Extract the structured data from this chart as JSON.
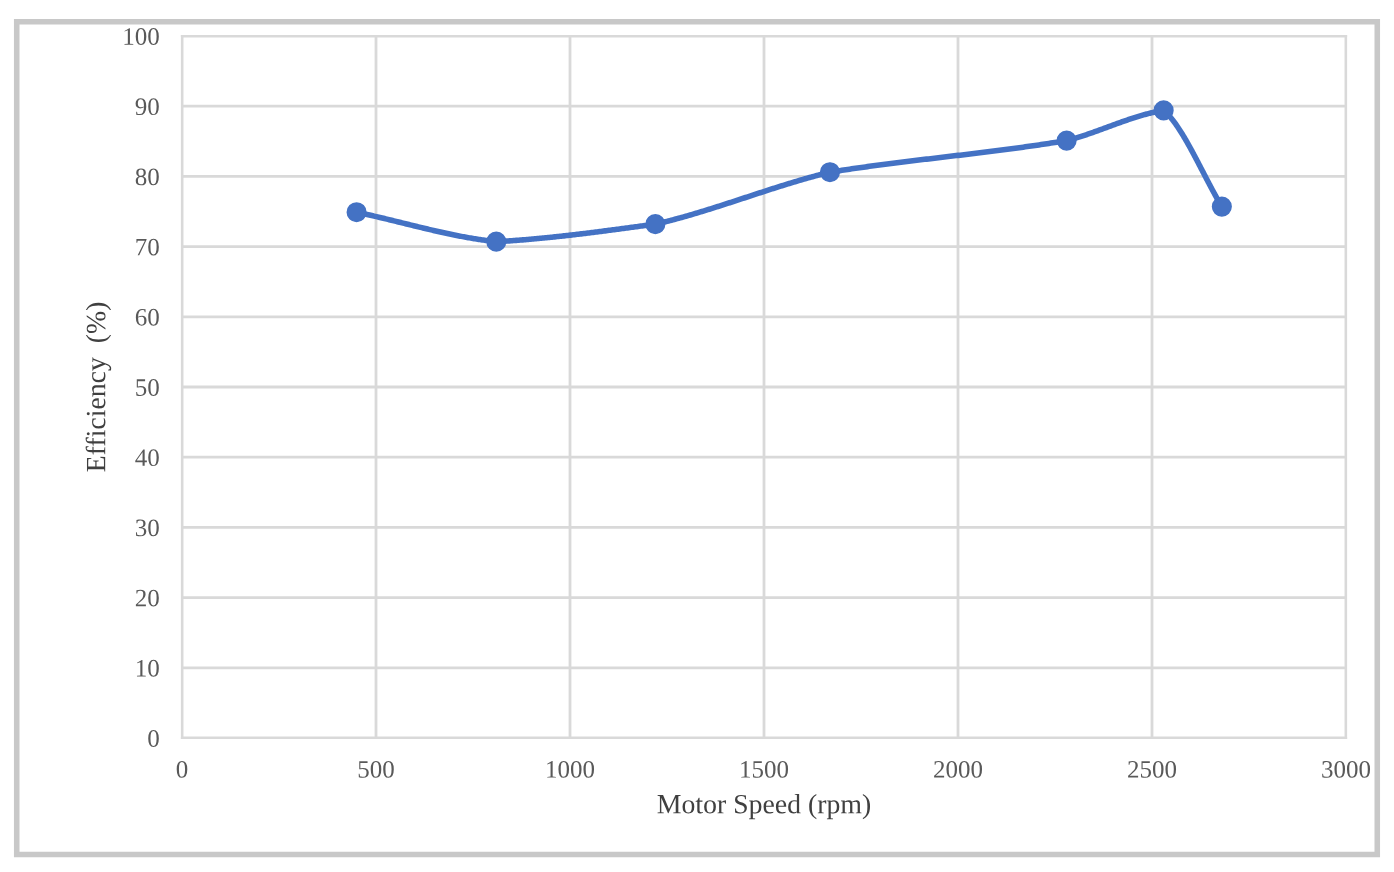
{
  "chart_data": {
    "type": "line",
    "xlabel": "Motor Speed (rpm)",
    "ylabel": "Efficiency  (%)",
    "x": [
      450,
      810,
      1220,
      1670,
      2280,
      2530,
      2680
    ],
    "series": [
      {
        "color": "#4472c4",
        "values": [
          74.9,
          70.7,
          73.2,
          80.6,
          85.1,
          89.4,
          75.7
        ]
      }
    ],
    "xlim": [
      0,
      3000
    ],
    "xticks": [
      0,
      500,
      1000,
      1500,
      2000,
      2500,
      3000
    ],
    "ylim": [
      0,
      100
    ],
    "yticks": [
      0,
      10,
      20,
      30,
      40,
      50,
      60,
      70,
      80,
      90,
      100
    ],
    "grid": true,
    "marker": "circle",
    "line_style": "solid"
  }
}
